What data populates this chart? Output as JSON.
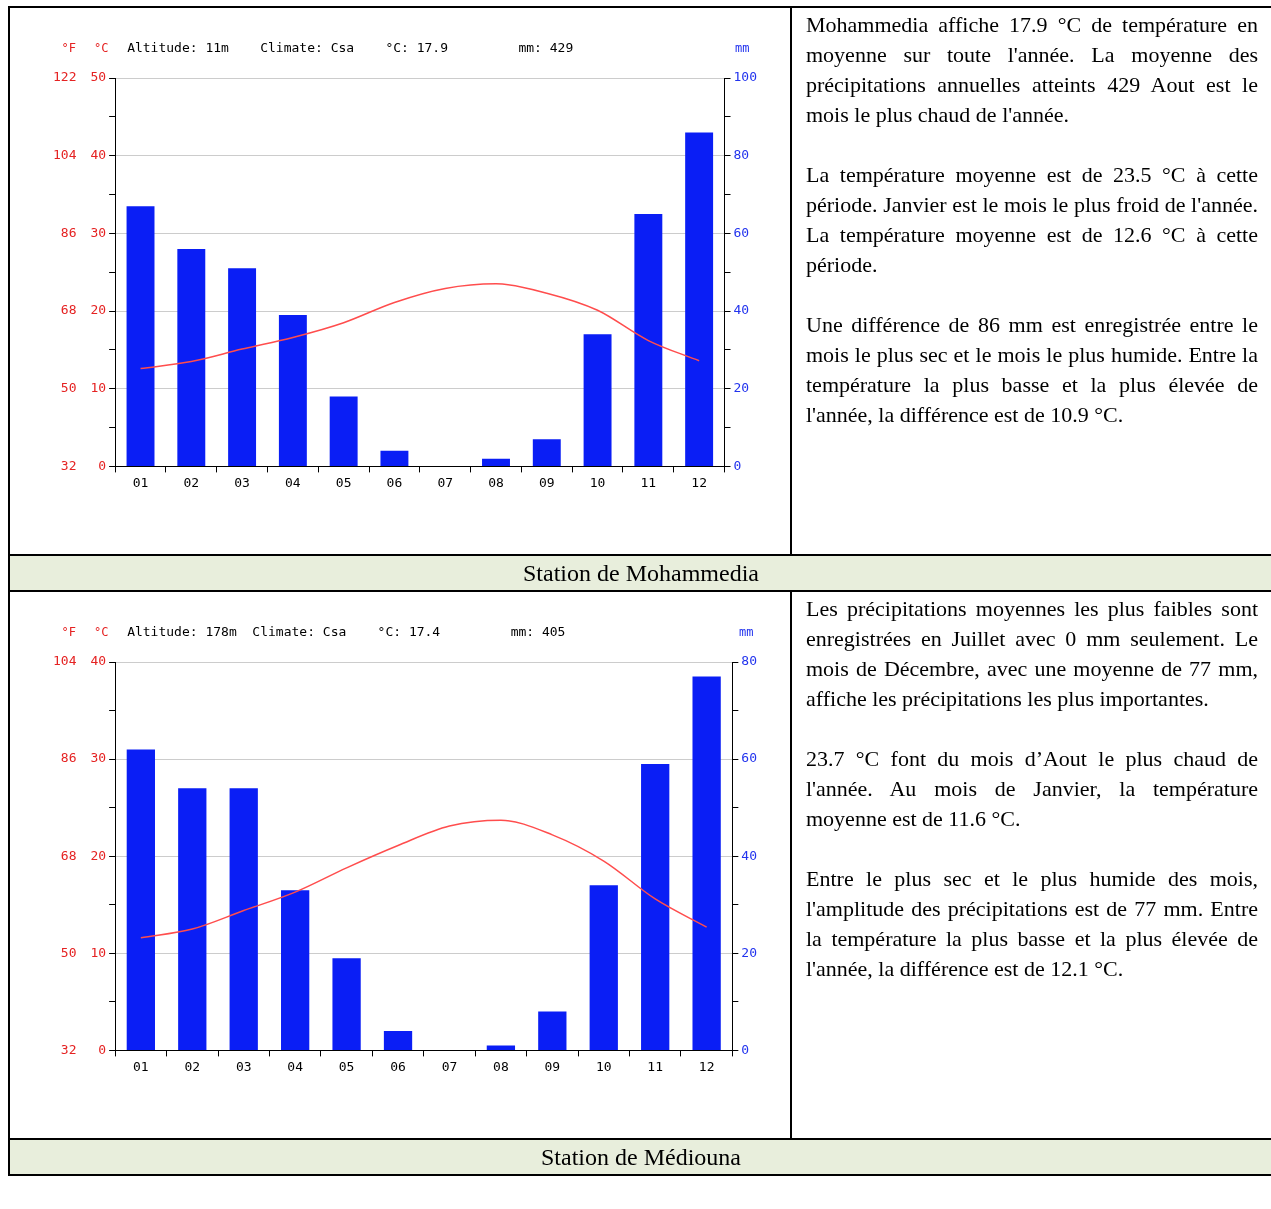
{
  "chart_data": [
    {
      "type": "bar",
      "title": "Station de Mohammedia",
      "subtitle": "Altitude: 11m    Climate: Csa    °C: 17.9         mm: 429",
      "ylabel": "°C",
      "y2label": "mm",
      "y3label": "°F",
      "categories": [
        "01",
        "02",
        "03",
        "04",
        "05",
        "06",
        "07",
        "08",
        "09",
        "10",
        "11",
        "12"
      ],
      "series": [
        {
          "color": "#0a1ef5",
          "axis": "y2",
          "values": [
            67,
            56,
            51,
            39,
            18,
            4,
            0,
            2,
            7,
            34,
            65,
            86
          ]
        },
        {
          "type": "line",
          "color": "#ff4d4d",
          "axis": "y",
          "values": [
            12.6,
            13.5,
            15.1,
            16.6,
            18.5,
            21.1,
            22.9,
            23.5,
            22.3,
            20.1,
            16.2,
            13.6
          ]
        }
      ],
      "ylim": [
        0,
        50
      ],
      "yticks": [
        0,
        {
          "value": 5,
          "label": null
        },
        10,
        {
          "value": 15,
          "label": null
        },
        20,
        {
          "value": 25,
          "label": null
        },
        30,
        {
          "value": 35,
          "label": null
        },
        40,
        {
          "value": 45,
          "label": null
        },
        50
      ],
      "y2lim": [
        0,
        100
      ],
      "y2ticks": [
        0,
        {
          "value": 10,
          "label": null
        },
        20,
        {
          "value": 30,
          "label": null
        },
        40,
        {
          "value": 50,
          "label": null
        },
        60,
        {
          "value": 70,
          "label": null
        },
        80,
        {
          "value": 90,
          "label": null
        },
        100
      ],
      "y3lim": [
        32,
        122
      ],
      "y3ticks": [
        32,
        50,
        68,
        86,
        104,
        122
      ],
      "grid": "y",
      "legend": false,
      "marker": "none",
      "line_style": "solid",
      "annotations": [
        "Mohammedia affiche 17.9 °C de température en moyenne sur toute l'année. La moyenne des précipitations annuelles atteints 429 Aout est le mois le plus chaud de l'année.",
        "La température moyenne est de 23.5 °C à cette période. Janvier est le mois le plus froid de l'année. La température moyenne est de 12.6 °C à cette période.",
        "Une différence de 86 mm est enregistrée entre le mois le plus sec et le mois le plus humide. Entre la température la plus basse et la plus élevée de l'année, la différence est de 10.9 °C."
      ]
    },
    {
      "type": "bar",
      "title": "Station de Médiouna",
      "subtitle": "Altitude: 178m  Climate: Csa    °C: 17.4         mm: 405",
      "ylabel": "°C",
      "y2label": "mm",
      "y3label": "°F",
      "categories": [
        "01",
        "02",
        "03",
        "04",
        "05",
        "06",
        "07",
        "08",
        "09",
        "10",
        "11",
        "12"
      ],
      "series": [
        {
          "color": "#0a1ef5",
          "axis": "y2",
          "values": [
            62,
            54,
            54,
            33,
            19,
            4,
            0,
            1,
            8,
            34,
            59,
            77
          ]
        },
        {
          "type": "line",
          "color": "#ff4d4d",
          "axis": "y",
          "values": [
            11.6,
            12.5,
            14.4,
            16.3,
            18.8,
            21.1,
            23.1,
            23.7,
            22.2,
            19.5,
            15.6,
            12.7
          ]
        }
      ],
      "ylim": [
        0,
        40
      ],
      "yticks": [
        0,
        {
          "value": 5,
          "label": null
        },
        10,
        {
          "value": 15,
          "label": null
        },
        20,
        {
          "value": 25,
          "label": null
        },
        30,
        {
          "value": 35,
          "label": null
        },
        40
      ],
      "y2lim": [
        0,
        80
      ],
      "y2ticks": [
        0,
        {
          "value": 10,
          "label": null
        },
        20,
        {
          "value": 30,
          "label": null
        },
        40,
        {
          "value": 50,
          "label": null
        },
        60,
        {
          "value": 70,
          "label": null
        },
        80
      ],
      "y3lim": [
        32,
        104
      ],
      "y3ticks": [
        32,
        50,
        68,
        86,
        104
      ],
      "grid": "y",
      "legend": false,
      "marker": "none",
      "line_style": "solid",
      "annotations": [
        "Les précipitations moyennes les plus faibles sont enregistrées en Juillet avec 0 mm seulement. Le mois de Décembre, avec une moyenne de 77 mm, affiche les précipitations les plus importantes.",
        "23.7 °C font du mois d’Aout le plus chaud de l'année. Au mois de Janvier, la température moyenne est de 11.6 °C.",
        "Entre le plus sec et le plus humide des mois, l'amplitude des précipitations est de 77 mm. Entre la température la plus basse et la plus élevée de l'année, la différence est de 12.1 °C."
      ]
    }
  ]
}
